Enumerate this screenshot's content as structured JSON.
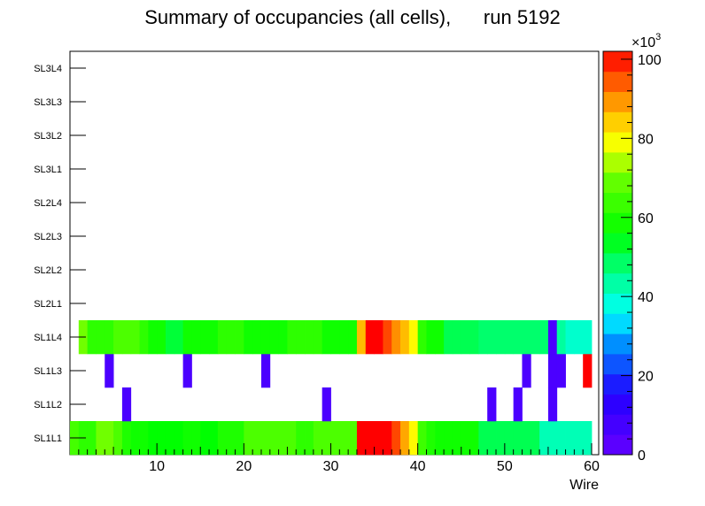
{
  "chart_data": {
    "type": "heatmap",
    "title": "Summary of occupancies (all cells),      run 5192",
    "xlabel": "Wire",
    "ylabel": "",
    "xlim": [
      0,
      60
    ],
    "x_ticks": [
      10,
      20,
      30,
      40,
      50,
      60
    ],
    "y_categories": [
      "SL1L1",
      "SL1L2",
      "SL1L3",
      "SL1L4",
      "SL2L1",
      "SL2L2",
      "SL2L3",
      "SL2L4",
      "SL3L1",
      "SL3L2",
      "SL3L3",
      "SL3L4"
    ],
    "colorbar": {
      "min": 0,
      "max": 102,
      "ticks": [
        0,
        20,
        40,
        60,
        80,
        100
      ],
      "multiplier_base": "×10",
      "multiplier_exp": "3"
    },
    "rows": {
      "SL1L1": [
        65,
        62,
        62,
        70,
        70,
        66,
        60,
        58,
        58,
        56,
        56,
        56,
        56,
        58,
        58,
        56,
        56,
        60,
        60,
        60,
        66,
        66,
        66,
        66,
        66,
        66,
        62,
        62,
        66,
        66,
        66,
        66,
        66,
        102,
        102,
        102,
        102,
        96,
        88,
        80,
        64,
        60,
        58,
        58,
        58,
        58,
        58,
        50,
        50,
        50,
        50,
        50,
        50,
        50,
        42,
        42,
        42,
        42,
        42,
        42
      ],
      "SL1L2": [
        null,
        null,
        null,
        null,
        null,
        null,
        6,
        null,
        null,
        null,
        null,
        null,
        null,
        null,
        null,
        null,
        null,
        null,
        null,
        null,
        null,
        null,
        null,
        null,
        null,
        null,
        null,
        null,
        null,
        6,
        null,
        null,
        null,
        null,
        null,
        null,
        null,
        null,
        null,
        null,
        null,
        null,
        null,
        null,
        null,
        null,
        null,
        null,
        6,
        null,
        null,
        6,
        null,
        null,
        null,
        6,
        null,
        null,
        null,
        null
      ],
      "SL1L3": [
        null,
        null,
        null,
        null,
        6,
        null,
        null,
        null,
        null,
        null,
        null,
        null,
        null,
        6,
        null,
        null,
        null,
        null,
        null,
        null,
        null,
        null,
        6,
        null,
        null,
        null,
        null,
        null,
        null,
        null,
        null,
        null,
        null,
        null,
        null,
        null,
        null,
        null,
        null,
        null,
        null,
        null,
        null,
        null,
        null,
        null,
        null,
        null,
        null,
        null,
        null,
        null,
        6,
        null,
        null,
        6,
        6,
        null,
        null,
        102
      ],
      "SL1L4": [
        null,
        70,
        62,
        62,
        62,
        66,
        66,
        66,
        62,
        58,
        58,
        52,
        52,
        58,
        58,
        58,
        58,
        62,
        62,
        62,
        58,
        58,
        58,
        58,
        58,
        62,
        62,
        62,
        62,
        58,
        58,
        58,
        58,
        86,
        102,
        102,
        96,
        90,
        86,
        80,
        62,
        58,
        58,
        50,
        50,
        50,
        50,
        48,
        48,
        48,
        48,
        48,
        48,
        48,
        48,
        6,
        44,
        40,
        40,
        40
      ]
    }
  }
}
